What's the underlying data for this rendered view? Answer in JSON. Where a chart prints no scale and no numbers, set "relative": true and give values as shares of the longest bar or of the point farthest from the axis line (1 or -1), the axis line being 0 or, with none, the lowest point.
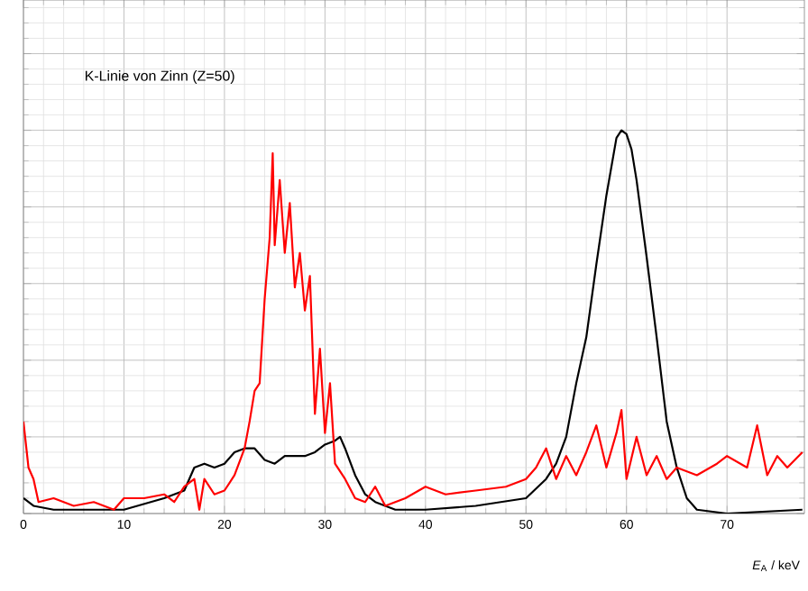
{
  "chart_data": {
    "type": "line",
    "relative": true,
    "xlabel": "*E*$_{A}$ / keV",
    "annotations": [
      "K-Linie von Zinn (Z=50)"
    ],
    "xlim": [
      0,
      77.7
    ],
    "xticks": [
      0,
      10,
      20,
      30,
      40,
      50,
      60,
      70
    ],
    "grid": true,
    "marker": "none",
    "line_style": "solid",
    "series": [
      {
        "color": "#000000",
        "x": [
          0,
          1,
          3,
          10,
          14,
          16,
          17,
          18,
          19,
          20,
          21,
          22,
          23,
          24,
          25,
          26,
          28,
          29,
          30,
          31,
          31.5,
          32,
          33,
          34,
          35,
          37,
          40,
          45,
          50,
          52,
          53,
          54,
          55,
          56,
          57,
          58,
          59,
          59.5,
          60,
          60.5,
          61,
          62,
          63,
          64,
          65,
          66,
          67,
          70,
          77.5
        ],
        "values": [
          0.04,
          0.02,
          0.01,
          0.01,
          0.04,
          0.06,
          0.12,
          0.13,
          0.12,
          0.13,
          0.16,
          0.17,
          0.17,
          0.14,
          0.13,
          0.15,
          0.15,
          0.16,
          0.18,
          0.19,
          0.2,
          0.17,
          0.1,
          0.05,
          0.03,
          0.01,
          0.01,
          0.02,
          0.04,
          0.09,
          0.13,
          0.2,
          0.34,
          0.46,
          0.65,
          0.83,
          0.98,
          1,
          0.99,
          0.95,
          0.87,
          0.67,
          0.46,
          0.24,
          0.12,
          0.04,
          0.01,
          0.0,
          0.01
        ]
      },
      {
        "color": "#ff0000",
        "x": [
          0,
          0.5,
          1,
          1.5,
          3,
          5,
          7,
          9,
          10,
          12,
          14,
          15,
          16,
          17,
          17.5,
          18,
          19,
          20,
          21,
          22,
          22.5,
          23,
          23.5,
          24,
          24.5,
          24.8,
          25,
          25.5,
          26,
          26.5,
          27,
          27.5,
          28,
          28.5,
          29,
          29.5,
          30,
          30.5,
          31,
          32,
          33,
          34,
          35,
          36,
          38,
          40,
          42,
          45,
          48,
          50,
          51,
          52,
          53,
          54,
          55,
          56,
          57,
          58,
          59,
          59.5,
          60,
          61,
          62,
          63,
          64,
          65,
          67,
          69,
          70,
          72,
          73,
          74,
          75,
          76,
          77.5
        ],
        "values": [
          0.24,
          0.12,
          0.09,
          0.03,
          0.04,
          0.02,
          0.03,
          0.01,
          0.04,
          0.04,
          0.05,
          0.03,
          0.07,
          0.09,
          0.01,
          0.09,
          0.05,
          0.06,
          0.1,
          0.17,
          0.24,
          0.32,
          0.34,
          0.56,
          0.72,
          0.94,
          0.7,
          0.87,
          0.68,
          0.81,
          0.59,
          0.68,
          0.53,
          0.62,
          0.26,
          0.43,
          0.21,
          0.34,
          0.13,
          0.09,
          0.04,
          0.03,
          0.07,
          0.02,
          0.04,
          0.07,
          0.05,
          0.06,
          0.07,
          0.09,
          0.12,
          0.17,
          0.09,
          0.15,
          0.1,
          0.16,
          0.23,
          0.12,
          0.21,
          0.27,
          0.09,
          0.2,
          0.1,
          0.15,
          0.09,
          0.12,
          0.1,
          0.13,
          0.15,
          0.12,
          0.23,
          0.1,
          0.15,
          0.12,
          0.16
        ]
      }
    ]
  }
}
